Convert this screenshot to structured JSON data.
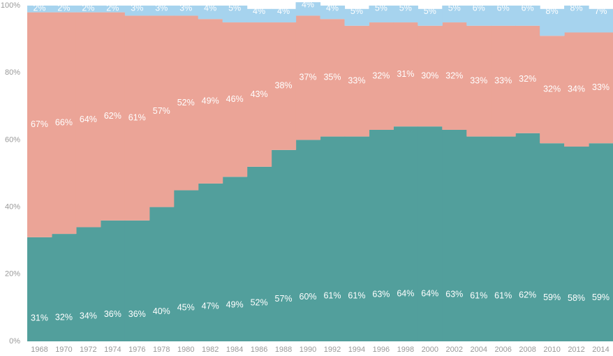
{
  "chart_data": {
    "type": "area",
    "stacked": "percent",
    "step": true,
    "x": [
      1968,
      1970,
      1972,
      1974,
      1976,
      1978,
      1980,
      1982,
      1984,
      1986,
      1988,
      1990,
      1992,
      1994,
      1996,
      1998,
      2000,
      2002,
      2004,
      2006,
      2008,
      2010,
      2012,
      2014
    ],
    "series": [
      {
        "color": "#529f9c",
        "values": [
          31,
          32,
          34,
          36,
          36,
          40,
          45,
          47,
          49,
          52,
          57,
          60,
          61,
          61,
          63,
          64,
          64,
          63,
          61,
          61,
          62,
          59,
          58,
          59
        ],
        "labels": [
          "31%",
          "32%",
          "34%",
          "36%",
          "36%",
          "40%",
          "45%",
          "47%",
          "49%",
          "52%",
          "57%",
          "60%",
          "61%",
          "61%",
          "63%",
          "64%",
          "64%",
          "63%",
          "61%",
          "61%",
          "62%",
          "59%",
          "58%",
          "59%"
        ]
      },
      {
        "color": "#eba497",
        "values": [
          67,
          66,
          64,
          62,
          61,
          57,
          52,
          49,
          46,
          43,
          38,
          37,
          35,
          33,
          32,
          31,
          30,
          32,
          33,
          33,
          32,
          32,
          34,
          33
        ],
        "labels": [
          "67%",
          "66%",
          "64%",
          "62%",
          "61%",
          "57%",
          "52%",
          "49%",
          "46%",
          "43%",
          "38%",
          "37%",
          "35%",
          "33%",
          "32%",
          "31%",
          "30%",
          "32%",
          "33%",
          "33%",
          "32%",
          "32%",
          "34%",
          "33%"
        ]
      },
      {
        "color": "#a6d3ee",
        "values": [
          2,
          2,
          2,
          2,
          3,
          3,
          3,
          4,
          5,
          4,
          4,
          4,
          4,
          5,
          5,
          5,
          5,
          5,
          6,
          6,
          6,
          8,
          8,
          7
        ],
        "labels": [
          "2%",
          "2%",
          "2%",
          "2%",
          "3%",
          "3%",
          "3%",
          "4%",
          "5%",
          "4%",
          "4%",
          "4%",
          "4%",
          "5%",
          "5%",
          "5%",
          "5%",
          "5%",
          "6%",
          "6%",
          "6%",
          "8%",
          "8%",
          "7%"
        ]
      }
    ],
    "y_ticks": [
      "0%",
      "20%",
      "40%",
      "60%",
      "80%",
      "100%"
    ],
    "x_tick_labels": [
      "1968",
      "1970",
      "1972",
      "1974",
      "1976",
      "1978",
      "1980",
      "1982",
      "1984",
      "1986",
      "1988",
      "1990",
      "1992",
      "1994",
      "1996",
      "1998",
      "2000",
      "2002",
      "2004",
      "2006",
      "2008",
      "2010",
      "2012",
      "2014"
    ],
    "ylim": [
      0,
      100
    ],
    "grid": false,
    "legend": "none",
    "title": "",
    "xlabel": "",
    "ylabel": ""
  }
}
